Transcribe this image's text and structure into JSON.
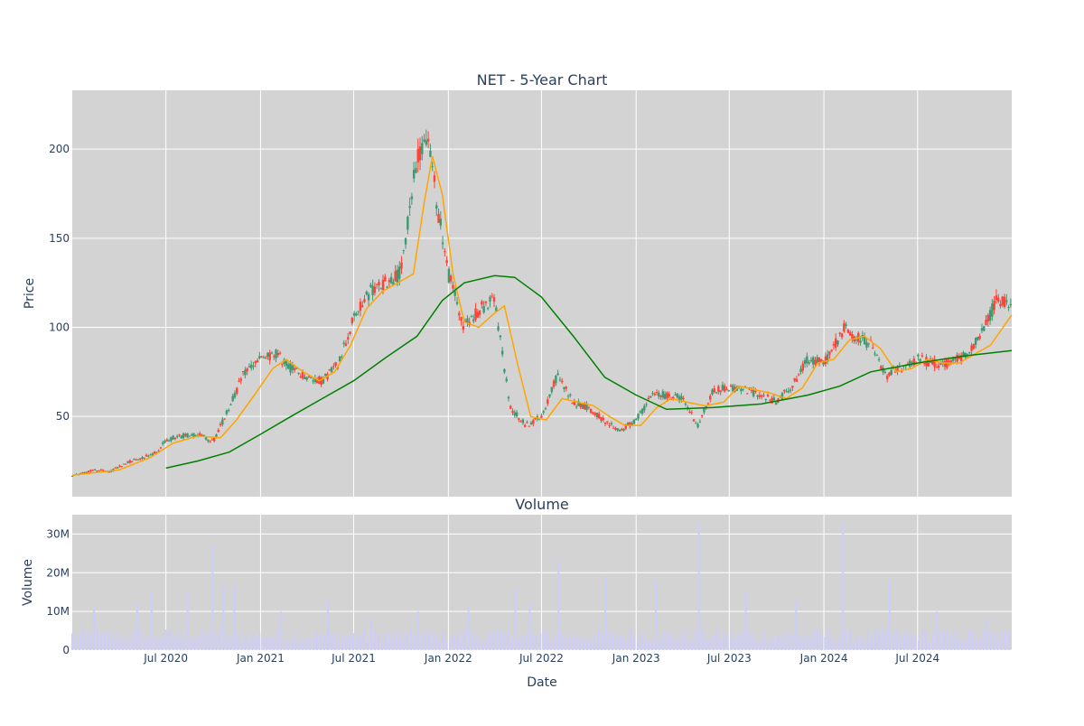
{
  "chart_data": [
    {
      "type": "candlestick",
      "title": "NET - 5-Year Chart",
      "ylabel": "Price",
      "ylim": [
        5,
        233
      ],
      "y_ticks": [
        50,
        100,
        150,
        200
      ],
      "x_range": [
        "2020-01-01",
        "2024-12-31"
      ],
      "x_ticks": [
        {
          "date": "2020-07-01",
          "label": "Jul 2020"
        },
        {
          "date": "2021-01-01",
          "label": "Jan 2021"
        },
        {
          "date": "2021-07-01",
          "label": "Jul 2021"
        },
        {
          "date": "2022-01-01",
          "label": "Jan 2022"
        },
        {
          "date": "2022-07-01",
          "label": "Jul 2022"
        },
        {
          "date": "2023-01-01",
          "label": "Jan 2023"
        },
        {
          "date": "2023-07-01",
          "label": "Jul 2023"
        },
        {
          "date": "2024-01-01",
          "label": "Jan 2024"
        },
        {
          "date": "2024-07-01",
          "label": "Jul 2024"
        }
      ],
      "close_series": [
        [
          "2020-01-01",
          17
        ],
        [
          "2020-02-15",
          20
        ],
        [
          "2020-03-15",
          19
        ],
        [
          "2020-04-15",
          24
        ],
        [
          "2020-05-15",
          27
        ],
        [
          "2020-06-15",
          30
        ],
        [
          "2020-07-01",
          37
        ],
        [
          "2020-08-01",
          39
        ],
        [
          "2020-09-01",
          40
        ],
        [
          "2020-10-01",
          36
        ],
        [
          "2020-11-01",
          55
        ],
        [
          "2020-12-01",
          75
        ],
        [
          "2021-01-01",
          82
        ],
        [
          "2021-02-01",
          85
        ],
        [
          "2021-03-01",
          77
        ],
        [
          "2021-04-01",
          72
        ],
        [
          "2021-05-01",
          70
        ],
        [
          "2021-06-01",
          80
        ],
        [
          "2021-07-01",
          105
        ],
        [
          "2021-08-01",
          120
        ],
        [
          "2021-09-01",
          125
        ],
        [
          "2021-10-01",
          130
        ],
        [
          "2021-11-01",
          195
        ],
        [
          "2021-11-20",
          210
        ],
        [
          "2021-12-15",
          160
        ],
        [
          "2022-01-01",
          130
        ],
        [
          "2022-02-01",
          100
        ],
        [
          "2022-03-01",
          110
        ],
        [
          "2022-04-01",
          115
        ],
        [
          "2022-05-01",
          55
        ],
        [
          "2022-06-01",
          45
        ],
        [
          "2022-07-01",
          50
        ],
        [
          "2022-08-01",
          73
        ],
        [
          "2022-09-01",
          58
        ],
        [
          "2022-10-01",
          55
        ],
        [
          "2022-11-01",
          47
        ],
        [
          "2022-12-01",
          42
        ],
        [
          "2023-01-01",
          48
        ],
        [
          "2023-02-01",
          62
        ],
        [
          "2023-03-01",
          62
        ],
        [
          "2023-04-01",
          60
        ],
        [
          "2023-05-01",
          45
        ],
        [
          "2023-06-01",
          65
        ],
        [
          "2023-07-01",
          66
        ],
        [
          "2023-08-01",
          65
        ],
        [
          "2023-09-01",
          62
        ],
        [
          "2023-10-01",
          58
        ],
        [
          "2023-11-01",
          68
        ],
        [
          "2023-12-01",
          82
        ],
        [
          "2024-01-01",
          80
        ],
        [
          "2024-02-10",
          100
        ],
        [
          "2024-03-01",
          95
        ],
        [
          "2024-04-01",
          90
        ],
        [
          "2024-05-01",
          72
        ],
        [
          "2024-06-01",
          78
        ],
        [
          "2024-07-01",
          82
        ],
        [
          "2024-08-01",
          80
        ],
        [
          "2024-09-01",
          80
        ],
        [
          "2024-10-01",
          85
        ],
        [
          "2024-11-01",
          95
        ],
        [
          "2024-12-01",
          115
        ]
      ],
      "series": [
        {
          "style": "ma-short",
          "color": "#ffa500",
          "points": [
            [
              "2020-01-01",
              17
            ],
            [
              "2020-04-01",
              20
            ],
            [
              "2020-06-01",
              27
            ],
            [
              "2020-07-15",
              35
            ],
            [
              "2020-09-01",
              39
            ],
            [
              "2020-10-15",
              38
            ],
            [
              "2020-11-15",
              48
            ],
            [
              "2020-12-20",
              62
            ],
            [
              "2021-01-25",
              77
            ],
            [
              "2021-02-20",
              82
            ],
            [
              "2021-03-25",
              75
            ],
            [
              "2021-04-25",
              70
            ],
            [
              "2021-05-25",
              75
            ],
            [
              "2021-06-25",
              90
            ],
            [
              "2021-07-25",
              110
            ],
            [
              "2021-08-25",
              120
            ],
            [
              "2021-09-25",
              125
            ],
            [
              "2021-10-25",
              130
            ],
            [
              "2021-11-15",
              170
            ],
            [
              "2021-12-01",
              196
            ],
            [
              "2021-12-20",
              175
            ],
            [
              "2022-01-10",
              130
            ],
            [
              "2022-02-01",
              103
            ],
            [
              "2022-03-01",
              100
            ],
            [
              "2022-04-01",
              108
            ],
            [
              "2022-04-20",
              112
            ],
            [
              "2022-05-15",
              80
            ],
            [
              "2022-06-10",
              50
            ],
            [
              "2022-07-10",
              48
            ],
            [
              "2022-08-10",
              60
            ],
            [
              "2022-09-10",
              58
            ],
            [
              "2022-10-10",
              56
            ],
            [
              "2022-11-10",
              50
            ],
            [
              "2022-12-10",
              45
            ],
            [
              "2023-01-10",
              45
            ],
            [
              "2023-02-10",
              55
            ],
            [
              "2023-03-10",
              60
            ],
            [
              "2023-04-10",
              58
            ],
            [
              "2023-05-15",
              56
            ],
            [
              "2023-06-20",
              58
            ],
            [
              "2023-07-20",
              67
            ],
            [
              "2023-08-20",
              65
            ],
            [
              "2023-09-20",
              63
            ],
            [
              "2023-10-20",
              60
            ],
            [
              "2023-11-20",
              66
            ],
            [
              "2023-12-20",
              80
            ],
            [
              "2024-01-20",
              82
            ],
            [
              "2024-02-20",
              93
            ],
            [
              "2024-03-20",
              95
            ],
            [
              "2024-04-20",
              88
            ],
            [
              "2024-05-20",
              75
            ],
            [
              "2024-06-20",
              77
            ],
            [
              "2024-07-20",
              82
            ],
            [
              "2024-08-20",
              80
            ],
            [
              "2024-09-20",
              80
            ],
            [
              "2024-10-20",
              85
            ],
            [
              "2024-11-20",
              90
            ],
            [
              "2024-12-31",
              107
            ]
          ]
        },
        {
          "style": "ma-long",
          "color": "#008000",
          "points": [
            [
              "2020-07-01",
              21
            ],
            [
              "2020-09-01",
              25
            ],
            [
              "2020-11-01",
              30
            ],
            [
              "2021-01-01",
              40
            ],
            [
              "2021-03-01",
              50
            ],
            [
              "2021-05-01",
              60
            ],
            [
              "2021-07-01",
              70
            ],
            [
              "2021-09-01",
              83
            ],
            [
              "2021-11-01",
              95
            ],
            [
              "2021-12-20",
              115
            ],
            [
              "2022-02-01",
              125
            ],
            [
              "2022-04-01",
              129
            ],
            [
              "2022-05-10",
              128
            ],
            [
              "2022-07-01",
              117
            ],
            [
              "2022-09-01",
              95
            ],
            [
              "2022-11-01",
              72
            ],
            [
              "2023-01-01",
              62
            ],
            [
              "2023-03-01",
              54
            ],
            [
              "2023-06-01",
              55
            ],
            [
              "2023-09-01",
              57
            ],
            [
              "2023-12-01",
              62
            ],
            [
              "2024-02-01",
              67
            ],
            [
              "2024-04-01",
              75
            ],
            [
              "2024-07-01",
              80
            ],
            [
              "2024-10-01",
              84
            ],
            [
              "2024-12-31",
              87
            ]
          ]
        }
      ]
    },
    {
      "type": "bar",
      "title": "Volume",
      "xlabel": "Date",
      "ylabel": "Volume",
      "ylim": [
        0,
        35000000
      ],
      "y_ticks": [
        {
          "value": 0,
          "label": "0"
        },
        {
          "value": 10000000,
          "label": "10M"
        },
        {
          "value": 20000000,
          "label": "20M"
        },
        {
          "value": 30000000,
          "label": "30M"
        }
      ],
      "bar_color": "#ccccff",
      "typical_volume": 4000000,
      "spikes": [
        [
          "2020-02-15",
          11000000
        ],
        [
          "2020-05-05",
          12000000
        ],
        [
          "2020-06-05",
          15000000
        ],
        [
          "2020-08-10",
          15000000
        ],
        [
          "2020-10-01",
          27000000
        ],
        [
          "2020-10-20",
          17000000
        ],
        [
          "2020-11-10",
          17000000
        ],
        [
          "2021-02-10",
          10000000
        ],
        [
          "2021-05-10",
          13000000
        ],
        [
          "2021-08-05",
          8000000
        ],
        [
          "2021-11-05",
          10000000
        ],
        [
          "2022-02-10",
          11000000
        ],
        [
          "2022-05-10",
          16000000
        ],
        [
          "2022-06-10",
          12000000
        ],
        [
          "2022-08-05",
          23000000
        ],
        [
          "2022-11-05",
          19000000
        ],
        [
          "2023-02-10",
          18000000
        ],
        [
          "2023-05-05",
          33000000
        ],
        [
          "2023-08-05",
          15000000
        ],
        [
          "2023-11-05",
          13000000
        ],
        [
          "2024-02-09",
          33000000
        ],
        [
          "2024-05-10",
          18000000
        ],
        [
          "2024-08-05",
          10000000
        ],
        [
          "2024-11-10",
          8000000
        ]
      ]
    }
  ]
}
